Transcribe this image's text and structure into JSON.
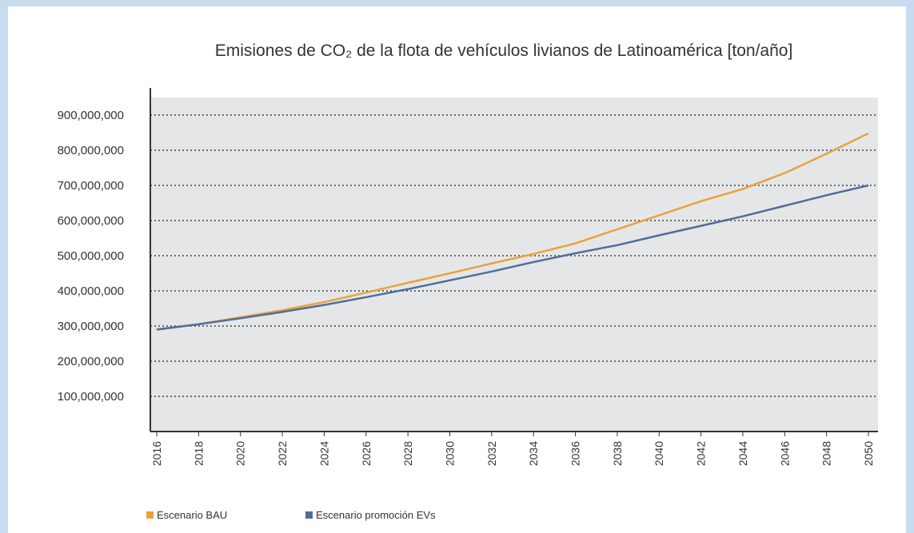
{
  "chart_data": {
    "type": "line",
    "title": "Emisiones de CO₂ de la flota de vehículos livianos de Latinoamérica [ton/año]",
    "x": [
      2016,
      2018,
      2020,
      2022,
      2024,
      2026,
      2028,
      2030,
      2032,
      2034,
      2036,
      2038,
      2040,
      2042,
      2044,
      2046,
      2048,
      2050
    ],
    "series": [
      {
        "name": "Escenario BAU",
        "color": "#e9a23b",
        "values": [
          290000000,
          305000000,
          325000000,
          345000000,
          368000000,
          395000000,
          423000000,
          450000000,
          478000000,
          505000000,
          535000000,
          575000000,
          615000000,
          655000000,
          690000000,
          735000000,
          790000000,
          848000000
        ]
      },
      {
        "name": "Escenario promoción EVs",
        "color": "#4f6d9a",
        "values": [
          290000000,
          305000000,
          322000000,
          340000000,
          360000000,
          382000000,
          405000000,
          430000000,
          455000000,
          482000000,
          507000000,
          530000000,
          558000000,
          585000000,
          612000000,
          642000000,
          672000000,
          700000000
        ]
      }
    ],
    "xlim": [
      2016,
      2050
    ],
    "xticks": [
      2016,
      2018,
      2020,
      2022,
      2024,
      2026,
      2028,
      2030,
      2032,
      2034,
      2036,
      2038,
      2040,
      2042,
      2044,
      2046,
      2048,
      2050
    ],
    "ylim": [
      0,
      950000000
    ],
    "yticks": [
      {
        "value": 100000000,
        "label": "100,000,000"
      },
      {
        "value": 200000000,
        "label": "200,000,000"
      },
      {
        "value": 300000000,
        "label": "300,000,000"
      },
      {
        "value": 400000000,
        "label": "400,000,000"
      },
      {
        "value": 500000000,
        "label": "500,000,000"
      },
      {
        "value": 600000000,
        "label": "600,000,000"
      },
      {
        "value": 700000000,
        "label": "700,000,000"
      },
      {
        "value": 800000000,
        "label": "800,000,000"
      },
      {
        "value": 900000000,
        "label": "900,000,000"
      }
    ],
    "grid": true,
    "legend": "bottom"
  }
}
